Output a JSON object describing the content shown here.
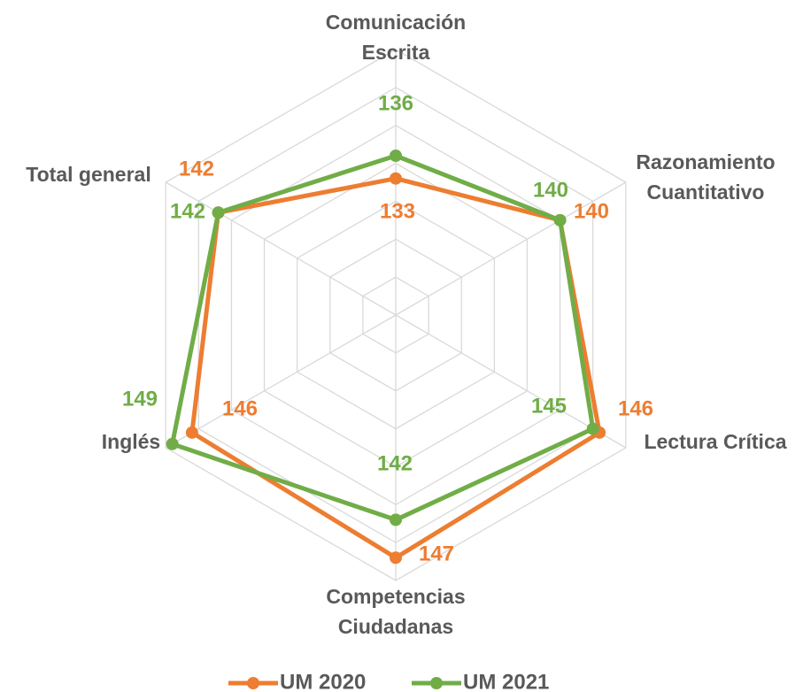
{
  "chart_data": {
    "type": "radar",
    "categories": [
      "Comunicación Escrita",
      "Razonamiento Cuantitativo",
      "Lectura Crítica",
      "Competencias Ciudadanas",
      "Inglés",
      "Total general"
    ],
    "series": [
      {
        "name": "UM 2020",
        "color": "#ed7d31",
        "values": [
          133,
          140,
          146,
          147,
          146,
          142
        ]
      },
      {
        "name": "UM 2021",
        "color": "#70ad47",
        "values": [
          136,
          140,
          145,
          142,
          149,
          142
        ]
      }
    ],
    "ylim": [
      115,
      150
    ],
    "yticks": [
      120,
      125,
      130,
      135,
      140,
      145,
      150
    ],
    "grid": true,
    "legend": "bottom"
  }
}
